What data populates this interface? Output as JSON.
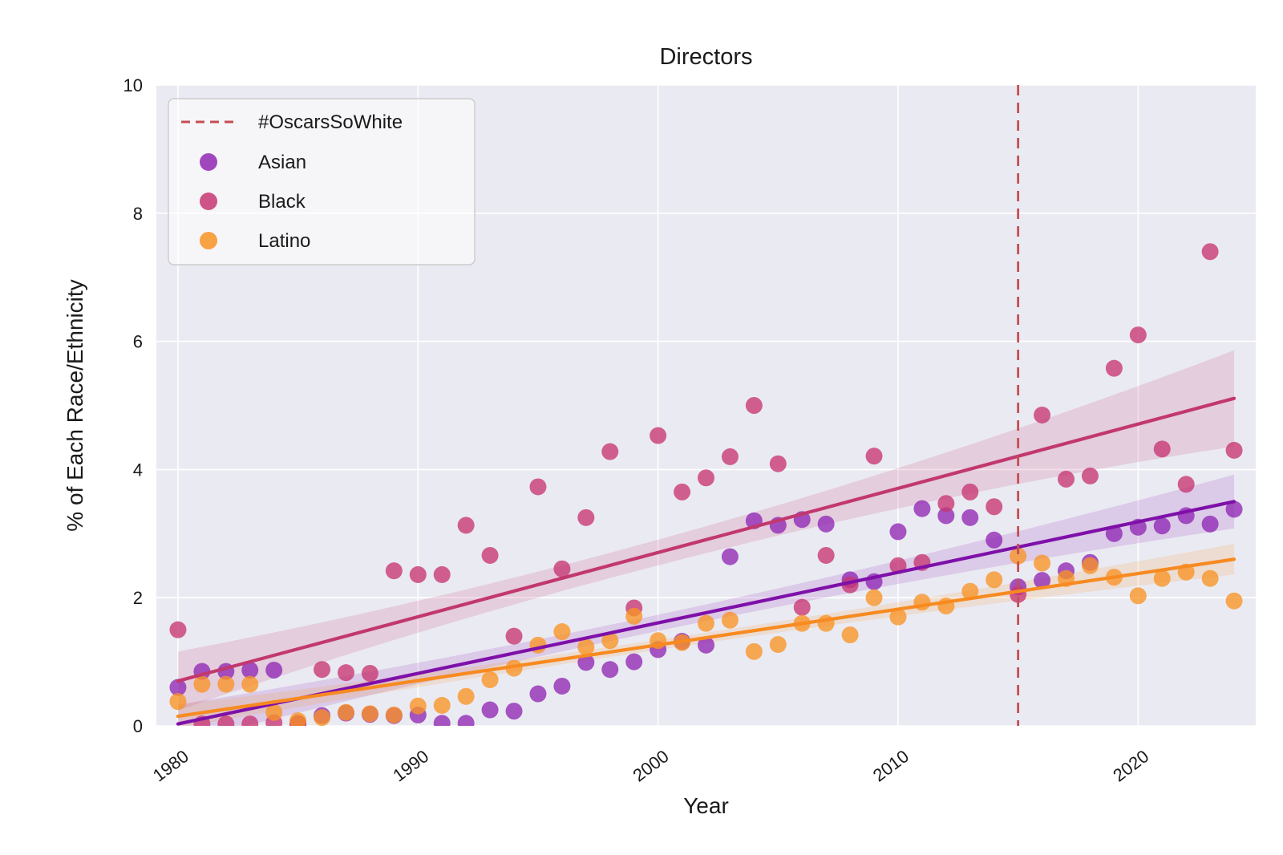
{
  "chart_data": {
    "type": "scatter",
    "title": "Directors",
    "xlabel": "Year",
    "ylabel": "% of Each Race/Ethnicity",
    "xlim": [
      1979.1,
      2024.9
    ],
    "ylim": [
      0,
      10
    ],
    "xticks": [
      1980,
      1990,
      2000,
      2010,
      2020
    ],
    "yticks": [
      0,
      2,
      4,
      6,
      8,
      10
    ],
    "grid": true,
    "background_color": "#EAEAF2",
    "gridline_color": "#FFFFFF",
    "annotation_line": {
      "label": "#OscarsSoWhite",
      "x": 2015,
      "color": "#C44E52",
      "style": "dashed"
    },
    "legend": {
      "position": "upper left",
      "entries": [
        {
          "label": "#OscarsSoWhite",
          "marker": "dashed-line",
          "color": "#C44E52"
        },
        {
          "label": "Asian",
          "marker": "dot",
          "color": "#9028B4"
        },
        {
          "label": "Black",
          "marker": "dot",
          "color": "#C73672"
        },
        {
          "label": "Latino",
          "marker": "dot",
          "color": "#F89325"
        }
      ]
    },
    "years": [
      1980,
      1981,
      1982,
      1983,
      1984,
      1985,
      1986,
      1987,
      1988,
      1989,
      1990,
      1991,
      1992,
      1993,
      1994,
      1995,
      1996,
      1997,
      1998,
      1999,
      2000,
      2001,
      2002,
      2003,
      2004,
      2005,
      2006,
      2007,
      2008,
      2009,
      2010,
      2011,
      2012,
      2013,
      2014,
      2015,
      2016,
      2017,
      2018,
      2019,
      2020,
      2021,
      2022,
      2023,
      2024
    ],
    "series": [
      {
        "name": "Asian",
        "dot_color": "#9028B4",
        "line_color": "#7E10A8",
        "values": [
          0.6,
          0.85,
          0.85,
          0.87,
          0.87,
          0.04,
          0.16,
          0.2,
          0.18,
          0.16,
          0.17,
          0.04,
          0.04,
          0.25,
          0.23,
          0.5,
          0.62,
          0.99,
          0.88,
          1.0,
          1.19,
          1.32,
          1.26,
          2.64,
          3.2,
          3.13,
          3.22,
          3.15,
          2.28,
          2.25,
          3.03,
          3.39,
          3.28,
          3.25,
          2.9,
          2.17,
          2.27,
          2.42,
          2.55,
          3.0,
          3.1,
          3.12,
          3.28,
          3.15,
          3.38
        ],
        "trend": {
          "x": [
            1980,
            2024
          ],
          "y": [
            0.03,
            3.5
          ],
          "ci_halfwidth": [
            0.3,
            0.13,
            0.42
          ]
        }
      },
      {
        "name": "Black",
        "dot_color": "#C73672",
        "line_color": "#C2386E",
        "values": [
          1.5,
          0.03,
          0.03,
          0.03,
          0.05,
          0.03,
          0.88,
          0.83,
          0.82,
          2.42,
          2.36,
          2.36,
          3.13,
          2.66,
          1.4,
          3.73,
          2.45,
          3.25,
          4.28,
          1.84,
          4.53,
          3.65,
          3.87,
          4.2,
          5.0,
          4.09,
          1.85,
          2.66,
          2.2,
          4.21,
          2.5,
          2.55,
          3.47,
          3.65,
          3.42,
          2.05,
          4.85,
          3.85,
          3.9,
          5.58,
          6.1,
          4.32,
          3.77,
          7.4,
          4.3
        ],
        "trend": {
          "x": [
            1980,
            2024
          ],
          "y": [
            0.7,
            5.11
          ],
          "ci_halfwidth": [
            0.46,
            0.21,
            0.75
          ]
        }
      },
      {
        "name": "Latino",
        "dot_color": "#F89325",
        "line_color": "#F78A20",
        "values": [
          0.38,
          0.65,
          0.65,
          0.65,
          0.21,
          0.08,
          0.13,
          0.21,
          0.19,
          0.17,
          0.31,
          0.32,
          0.46,
          0.72,
          0.9,
          1.26,
          1.47,
          1.23,
          1.33,
          1.71,
          1.33,
          1.3,
          1.6,
          1.65,
          1.16,
          1.27,
          1.6,
          1.6,
          1.42,
          2.0,
          1.7,
          1.93,
          1.87,
          2.1,
          2.28,
          2.65,
          2.54,
          2.3,
          2.5,
          2.32,
          2.03,
          2.3,
          2.4,
          2.3,
          1.95
        ],
        "trend": {
          "x": [
            1980,
            2024
          ],
          "y": [
            0.15,
            2.6
          ],
          "ci_halfwidth": [
            0.18,
            0.08,
            0.24
          ]
        }
      }
    ]
  }
}
